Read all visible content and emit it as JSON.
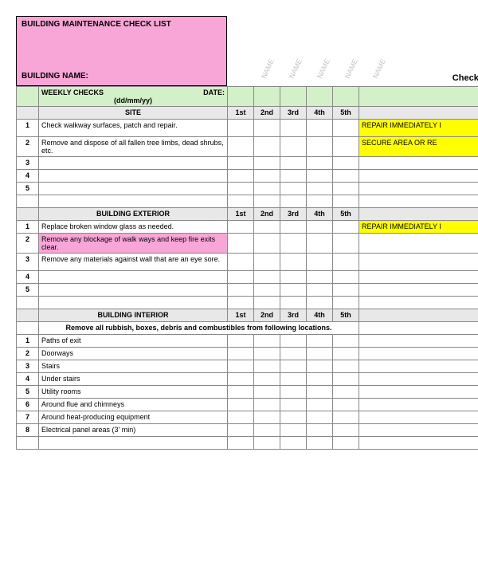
{
  "colors": {
    "pink": "#f8a6d7",
    "green": "#d4f0c8",
    "grey": "#e8e8e8",
    "yellow": "#ffff00",
    "rotText": "#c4c4c4",
    "border": "#888888"
  },
  "header": {
    "title": "BUILDING MAINTENANCE CHECK LIST",
    "buildingNameLabel": "BUILDING NAME:",
    "rotatedLabels": [
      "NAME",
      "NAME",
      "NAME",
      "NAME",
      "NAME"
    ],
    "checkC": "Check c"
  },
  "weekly": {
    "label": "WEEKLY CHECKS",
    "dateLabel": "DATE:",
    "dateFormat": "(dd/mm/yy)"
  },
  "columns": [
    "1st",
    "2nd",
    "3rd",
    "4th",
    "5th"
  ],
  "sections": [
    {
      "title": "SITE",
      "rows": [
        {
          "n": "1",
          "desc": "Check walkway surfaces, patch and repair.",
          "action": "REPAIR IMMEDIATELY I",
          "actionClass": "yellow",
          "descClass": ""
        },
        {
          "n": "2",
          "desc": "Remove and dispose of all fallen tree limbs, dead shrubs, etc.",
          "action": "SECURE AREA OR RE",
          "actionClass": "yellow",
          "descClass": ""
        },
        {
          "n": "3",
          "desc": "",
          "action": "",
          "actionClass": "",
          "descClass": ""
        },
        {
          "n": "4",
          "desc": "",
          "action": "",
          "actionClass": "",
          "descClass": ""
        },
        {
          "n": "5",
          "desc": "",
          "action": "",
          "actionClass": "",
          "descClass": ""
        }
      ]
    },
    {
      "title": "BUILDING EXTERIOR",
      "rows": [
        {
          "n": "1",
          "desc": "Replace broken window glass as needed.",
          "action": "REPAIR IMMEDIATELY I",
          "actionClass": "yellow",
          "descClass": ""
        },
        {
          "n": "2",
          "desc": "Remove any blockage of walk ways and keep fire exits clear.",
          "action": "",
          "actionClass": "",
          "descClass": "pink-cell"
        },
        {
          "n": "3",
          "desc": "Remove any materials against wall that are an eye sore.",
          "action": "",
          "actionClass": "",
          "descClass": ""
        },
        {
          "n": "4",
          "desc": "",
          "action": "",
          "actionClass": "",
          "descClass": ""
        },
        {
          "n": "5",
          "desc": "",
          "action": "",
          "actionClass": "",
          "descClass": ""
        }
      ]
    },
    {
      "title": "BUILDING INTERIOR",
      "subheader": "Remove all rubbish, boxes, debris and combustibles from following locations.",
      "rows": [
        {
          "n": "1",
          "desc": "Paths of exit",
          "action": "",
          "actionClass": "",
          "descClass": ""
        },
        {
          "n": "2",
          "desc": "Doorways",
          "action": "",
          "actionClass": "",
          "descClass": ""
        },
        {
          "n": "3",
          "desc": "Stairs",
          "action": "",
          "actionClass": "",
          "descClass": ""
        },
        {
          "n": "4",
          "desc": "Under stairs",
          "action": "",
          "actionClass": "",
          "descClass": ""
        },
        {
          "n": "5",
          "desc": "Utility rooms",
          "action": "",
          "actionClass": "",
          "descClass": ""
        },
        {
          "n": "6",
          "desc": "Around flue and chimneys",
          "action": "",
          "actionClass": "",
          "descClass": ""
        },
        {
          "n": "7",
          "desc": "Around heat-producing equipment",
          "action": "",
          "actionClass": "",
          "descClass": ""
        },
        {
          "n": "8",
          "desc": "Electrical panel areas (3' min)",
          "action": "",
          "actionClass": "",
          "descClass": ""
        }
      ]
    }
  ]
}
